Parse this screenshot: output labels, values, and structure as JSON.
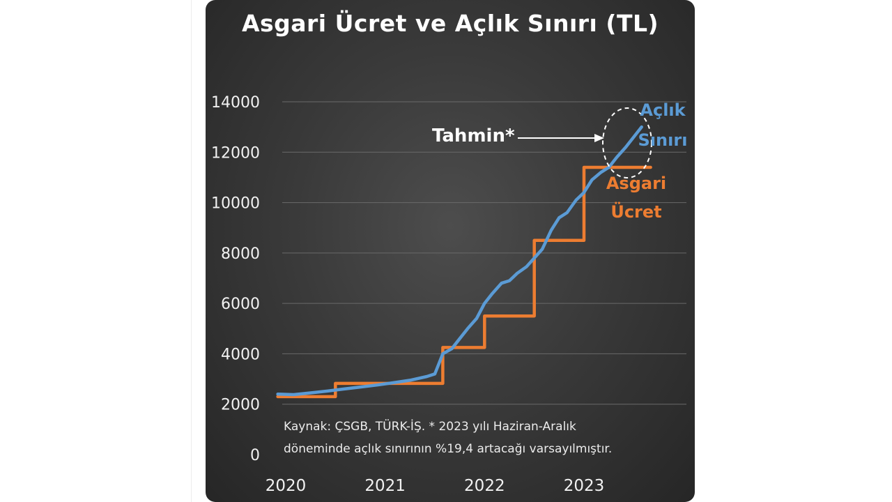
{
  "chart_data": {
    "type": "line",
    "title": "Asgari Ücret ve Açlık Sınırı (TL)",
    "xlabel": "",
    "ylabel": "",
    "x_ticks": [
      "2020",
      "2021",
      "2022",
      "2023"
    ],
    "y_ticks": [
      0,
      2000,
      4000,
      6000,
      8000,
      10000,
      12000,
      14000
    ],
    "ylim": [
      0,
      14000
    ],
    "xlim": [
      2020.0,
      2023.75
    ],
    "grid": true,
    "series": [
      {
        "name": "Açlık Sınırı",
        "color": "#5b9bd5",
        "points": [
          [
            2019.92,
            2400
          ],
          [
            2020.08,
            2380
          ],
          [
            2020.25,
            2450
          ],
          [
            2020.42,
            2520
          ],
          [
            2020.58,
            2600
          ],
          [
            2020.75,
            2680
          ],
          [
            2020.92,
            2760
          ],
          [
            2021.08,
            2850
          ],
          [
            2021.25,
            2950
          ],
          [
            2021.42,
            3100
          ],
          [
            2021.5,
            3200
          ],
          [
            2021.58,
            4000
          ],
          [
            2021.67,
            4200
          ],
          [
            2021.75,
            4600
          ],
          [
            2021.83,
            5000
          ],
          [
            2021.92,
            5400
          ],
          [
            2022.0,
            6000
          ],
          [
            2022.08,
            6400
          ],
          [
            2022.17,
            6800
          ],
          [
            2022.25,
            6900
          ],
          [
            2022.33,
            7200
          ],
          [
            2022.42,
            7450
          ],
          [
            2022.5,
            7800
          ],
          [
            2022.58,
            8150
          ],
          [
            2022.67,
            8900
          ],
          [
            2022.75,
            9400
          ],
          [
            2022.83,
            9600
          ],
          [
            2022.92,
            10100
          ],
          [
            2023.0,
            10400
          ],
          [
            2023.08,
            10900
          ],
          [
            2023.17,
            11200
          ],
          [
            2023.25,
            11400
          ],
          [
            2023.33,
            11800
          ],
          [
            2023.42,
            12200
          ],
          [
            2023.5,
            12600
          ],
          [
            2023.58,
            13000
          ]
        ]
      },
      {
        "name": "Asgari Ücret",
        "color": "#ed7d31",
        "points": [
          [
            2019.92,
            2300
          ],
          [
            2020.5,
            2300
          ],
          [
            2020.5,
            2825
          ],
          [
            2021.58,
            2825
          ],
          [
            2021.58,
            4250
          ],
          [
            2022.0,
            4250
          ],
          [
            2022.0,
            5500
          ],
          [
            2022.5,
            5500
          ],
          [
            2022.5,
            8500
          ],
          [
            2023.0,
            8500
          ],
          [
            2023.0,
            11400
          ],
          [
            2023.67,
            11400
          ]
        ]
      }
    ],
    "annotations": {
      "blue_label_lines": [
        "Açlık",
        "Sınırı"
      ],
      "orange_label_lines": [
        "Asgari",
        "Ücret"
      ],
      "forecast_label": "Tahmin*",
      "source_lines": [
        "Kaynak: ÇSGB, TÜRK-İŞ. * 2023 yılı Haziran-Aralık",
        "döneminde açlık sınırının %19,4 artacağı varsayılmıştır."
      ]
    }
  }
}
